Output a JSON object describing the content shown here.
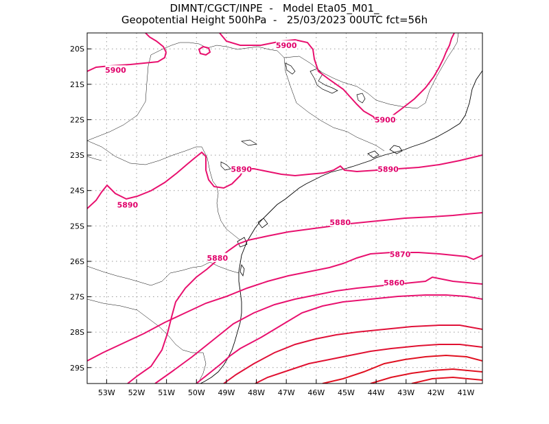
{
  "title": {
    "line1": "DIMNT/CGCT/INPE  -   Model Eta05_M01_",
    "line2": "Geopotential Height 500hPa  -   25/03/2023 00UTC fct=56h"
  },
  "axes": {
    "lat_labels": [
      "20S",
      "21S",
      "22S",
      "23S",
      "24S",
      "25S",
      "26S",
      "27S",
      "28S",
      "29S"
    ],
    "lon_labels": [
      "53W",
      "52W",
      "51W",
      "50W",
      "49W",
      "48W",
      "47W",
      "46W",
      "45W",
      "44W",
      "43W",
      "42W",
      "41W"
    ]
  },
  "contour_labels": [
    {
      "text": "5900",
      "lon": -47.0,
      "lat": -19.9
    },
    {
      "text": "5900",
      "lon": -52.7,
      "lat": -20.6
    },
    {
      "text": "5900",
      "lon": -43.7,
      "lat": -22.0
    },
    {
      "text": "5890",
      "lon": -48.5,
      "lat": -23.4
    },
    {
      "text": "5890",
      "lon": -43.6,
      "lat": -23.4
    },
    {
      "text": "5890",
      "lon": -52.3,
      "lat": -24.4
    },
    {
      "text": "5880",
      "lon": -45.2,
      "lat": -24.9
    },
    {
      "text": "5880",
      "lon": -49.3,
      "lat": -25.9
    },
    {
      "text": "5870",
      "lon": -43.2,
      "lat": -25.8
    },
    {
      "text": "5860",
      "lon": -43.4,
      "lat": -26.6
    }
  ],
  "colors": {
    "contour_magenta": "#e8106e",
    "contour_red": "#e01020",
    "coastline": "#000000",
    "grid": "#999999"
  }
}
